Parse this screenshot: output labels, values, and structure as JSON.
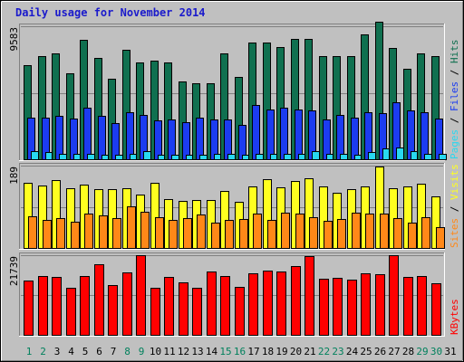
{
  "title": "Daily usage for November 2014",
  "colors": {
    "background": "#c0c0c0",
    "hits": "#107050",
    "files": "#1c3cf0",
    "pages": "#28d8f0",
    "visits": "#ffff20",
    "sites": "#ff8818",
    "kbytes": "#ff0000",
    "grid": "#808080",
    "day_weekday": "#000000",
    "day_weekend": "#00805c"
  },
  "chart_data": [
    {
      "type": "bar",
      "name": "hits-files-pages",
      "x": [
        "1",
        "2",
        "3",
        "4",
        "5",
        "6",
        "7",
        "8",
        "9",
        "10",
        "11",
        "12",
        "13",
        "14",
        "15",
        "16",
        "17",
        "18",
        "19",
        "20",
        "21",
        "22",
        "23",
        "24",
        "25",
        "26",
        "27",
        "28",
        "29",
        "30",
        "31"
      ],
      "weekend_days": [
        "1",
        "2",
        "8",
        "9",
        "15",
        "16",
        "22",
        "23",
        "29",
        "30"
      ],
      "ymax_label": "9583",
      "ylim": [
        0,
        9583
      ],
      "legend": [
        {
          "label": "Pages",
          "color": "#28d8f0"
        },
        {
          "label": "Files",
          "color": "#1c3cf0"
        },
        {
          "label": "Hits",
          "color": "#107050"
        }
      ],
      "separator": " / ",
      "series": [
        {
          "name": "Hits",
          "values": [
            6800,
            7400,
            7600,
            6200,
            8600,
            7300,
            5800,
            7900,
            7000,
            7100,
            7000,
            5600,
            5500,
            5500,
            7600,
            5900,
            8400,
            8400,
            8100,
            8700,
            8700,
            7400,
            7400,
            7400,
            9000,
            9900,
            8000,
            6500,
            7600,
            7400,
            0
          ]
        },
        {
          "name": "Files",
          "values": [
            3000,
            3000,
            3100,
            2950,
            3700,
            3100,
            2600,
            3400,
            3200,
            2800,
            2900,
            2700,
            3000,
            2850,
            2900,
            2500,
            3900,
            3600,
            3700,
            3600,
            3500,
            2900,
            3200,
            3000,
            3400,
            3300,
            4100,
            3500,
            3400,
            2950,
            0
          ]
        },
        {
          "name": "Pages",
          "values": [
            600,
            500,
            400,
            400,
            400,
            300,
            300,
            400,
            600,
            300,
            300,
            300,
            300,
            400,
            400,
            300,
            400,
            400,
            400,
            400,
            600,
            400,
            400,
            300,
            500,
            800,
            850,
            600,
            400,
            400,
            0
          ]
        }
      ]
    },
    {
      "type": "bar",
      "name": "visits-sites",
      "x": [
        "1",
        "2",
        "3",
        "4",
        "5",
        "6",
        "7",
        "8",
        "9",
        "10",
        "11",
        "12",
        "13",
        "14",
        "15",
        "16",
        "17",
        "18",
        "19",
        "20",
        "21",
        "22",
        "23",
        "24",
        "25",
        "26",
        "27",
        "28",
        "29",
        "30",
        "31"
      ],
      "ymax_label": "189",
      "ylim": [
        0,
        189
      ],
      "legend": [
        {
          "label": "Sites",
          "color": "#ff8818"
        },
        {
          "label": "Visits",
          "color": "#ffff20"
        }
      ],
      "separator": " / ",
      "series": [
        {
          "name": "Visits",
          "values": [
            150,
            143,
            155,
            138,
            145,
            135,
            135,
            138,
            123,
            150,
            113,
            108,
            111,
            110,
            130,
            106,
            142,
            157,
            140,
            153,
            160,
            142,
            126,
            136,
            142,
            187,
            137,
            141,
            147,
            119,
            0
          ]
        },
        {
          "name": "Sites",
          "values": [
            72,
            65,
            68,
            60,
            78,
            74,
            68,
            95,
            83,
            70,
            65,
            69,
            77,
            58,
            64,
            67,
            78,
            65,
            81,
            78,
            70,
            63,
            67,
            80,
            78,
            79,
            68,
            58,
            70,
            48,
            0
          ]
        }
      ]
    },
    {
      "type": "bar",
      "name": "kbytes",
      "x": [
        "1",
        "2",
        "3",
        "4",
        "5",
        "6",
        "7",
        "8",
        "9",
        "10",
        "11",
        "12",
        "13",
        "14",
        "15",
        "16",
        "17",
        "18",
        "19",
        "20",
        "21",
        "22",
        "23",
        "24",
        "25",
        "26",
        "27",
        "28",
        "29",
        "30",
        "31"
      ],
      "ymax_label": "21739",
      "ylim": [
        0,
        21739
      ],
      "legend": [
        {
          "label": "KBytes",
          "color": "#ff0000"
        }
      ],
      "separator": "",
      "series": [
        {
          "name": "KBytes",
          "values": [
            14800,
            16100,
            15800,
            12800,
            16100,
            19300,
            13700,
            17100,
            21700,
            12800,
            15800,
            14400,
            12800,
            17300,
            16100,
            13200,
            16700,
            17600,
            17300,
            18800,
            21400,
            15300,
            15500,
            15100,
            16800,
            16600,
            21700,
            15800,
            16100,
            14200,
            0
          ]
        }
      ]
    }
  ]
}
